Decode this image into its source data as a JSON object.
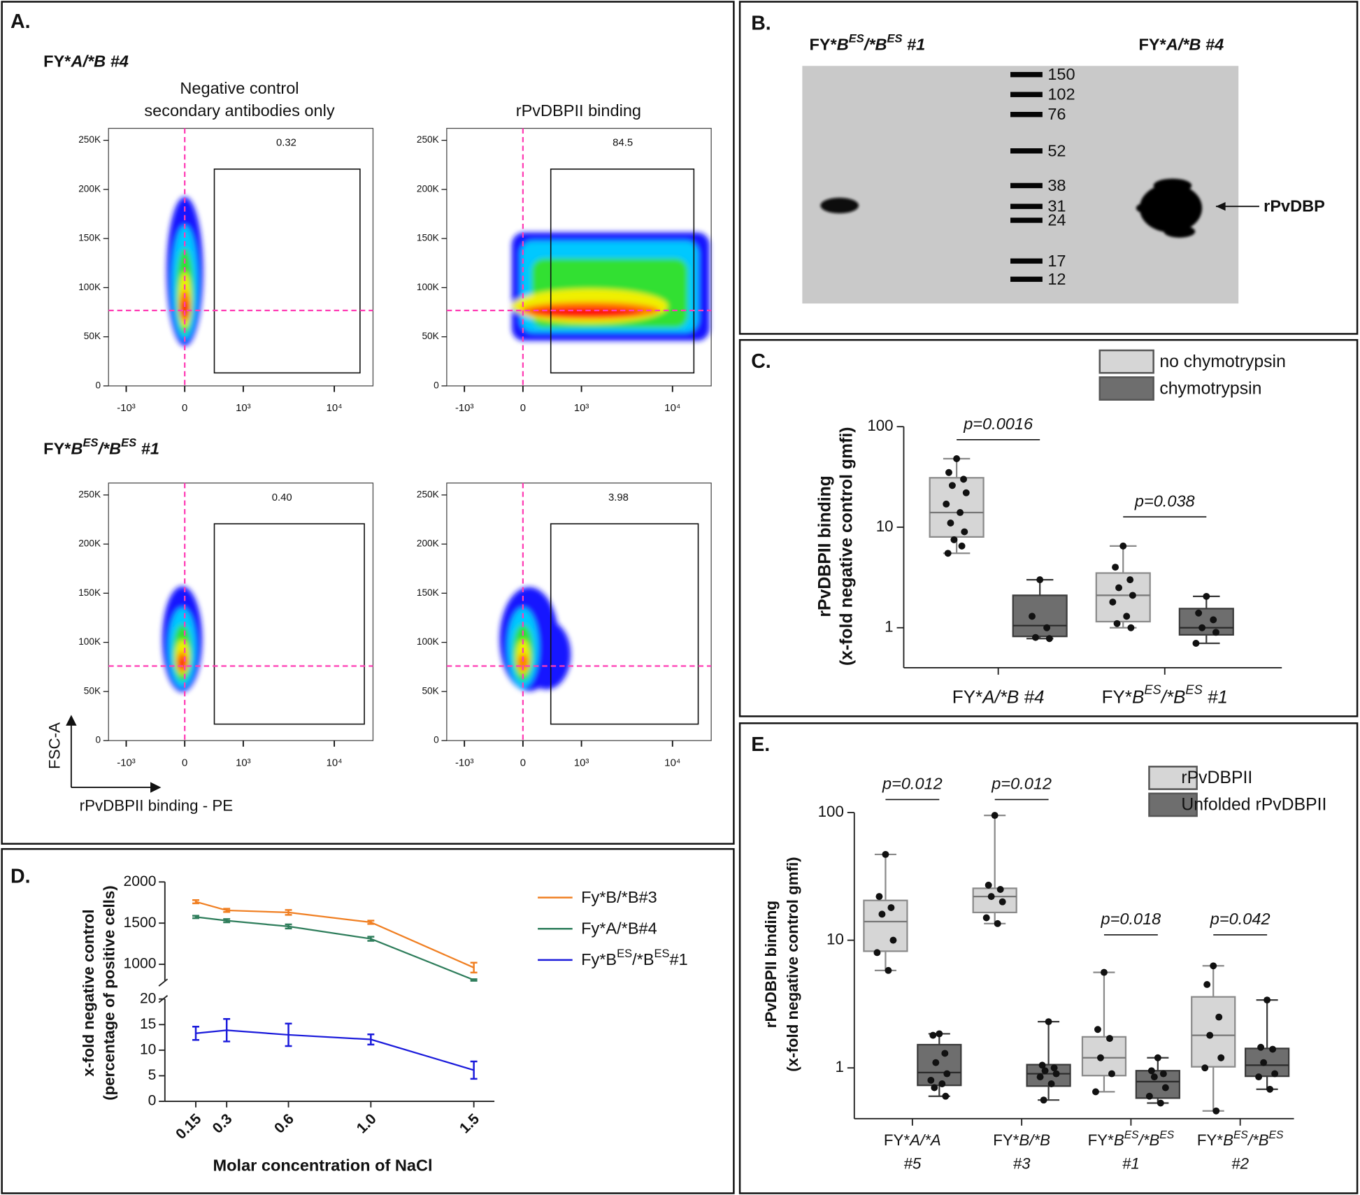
{
  "flow": {
    "label": "A.",
    "column_titles": [
      [
        "Negative control",
        "secondary antibodies only"
      ],
      [
        "rPvDBPII binding"
      ]
    ],
    "rows": [
      {
        "sample": "FY*A/*B #4",
        "gates": [
          "0.32",
          "84.5"
        ]
      },
      {
        "sample": "FY*BES/*BES #1",
        "gates": [
          "0.40",
          "3.98"
        ]
      }
    ],
    "ylim": [
      0,
      262144
    ],
    "yticks": [
      {
        "value": 0,
        "label": "0"
      },
      {
        "value": 50000,
        "label": "50K"
      },
      {
        "value": 100000,
        "label": "100K"
      },
      {
        "value": 150000,
        "label": "150K"
      },
      {
        "value": 200000,
        "label": "200K"
      },
      {
        "value": 250000,
        "label": "250K"
      }
    ],
    "xscale": "biexponential",
    "xlim": [
      -1600,
      26000
    ],
    "xticks": [
      {
        "value": -1000,
        "label": "-10³"
      },
      {
        "value": 0,
        "label": "0"
      },
      {
        "value": 1000,
        "label": "10³"
      },
      {
        "value": 10000,
        "label": "10⁴"
      }
    ],
    "y_axis_label": "FSC-A",
    "x_axis_label": "rPvDBPII binding - PE"
  },
  "blot": {
    "label": "B.",
    "lanes": [
      "FY*BES/*BES #1",
      "FY*A/*B #4"
    ],
    "ladder": [
      "150",
      "102",
      "76",
      "52",
      "38",
      "31",
      "24",
      "17",
      "12"
    ],
    "band_label": "rPvDBP"
  },
  "chart_data": [
    {
      "type": "box",
      "label": "C.",
      "ylabel": [
        "rPvDBPII binding",
        "(x-fold negative control gmfi)"
      ],
      "categories": [
        "FY*A/*B #4",
        "FY*BES/*BES #1"
      ],
      "annotations": [
        "p=0.0016",
        "p=0.038"
      ],
      "yscale": "log",
      "ylim": [
        0.4,
        100
      ],
      "yticks": [
        1,
        10,
        100
      ],
      "series": [
        {
          "name": "no chymotrypsin",
          "color": "#d6d6d6",
          "boxes": [
            {
              "whisker_low": 5.5,
              "q1": 8,
              "median": 14,
              "q3": 31,
              "whisker_high": 48,
              "points": [
                48,
                35,
                30,
                26,
                22,
                17,
                14,
                11,
                9,
                7.5,
                6.5,
                5.5
              ]
            },
            {
              "whisker_low": 1.0,
              "q1": 1.15,
              "median": 2.1,
              "q3": 3.5,
              "whisker_high": 6.5,
              "points": [
                6.5,
                4,
                3,
                2.5,
                2.1,
                1.8,
                1.3,
                1.1,
                1.0
              ]
            }
          ]
        },
        {
          "name": "chymotrypsin",
          "color": "#6e6e6e",
          "boxes": [
            {
              "whisker_low": 0.78,
              "q1": 0.82,
              "median": 1.05,
              "q3": 2.1,
              "whisker_high": 3.0,
              "points": [
                3.0,
                1.3,
                1.0,
                0.8,
                0.78
              ]
            },
            {
              "whisker_low": 0.7,
              "q1": 0.85,
              "median": 1.0,
              "q3": 1.55,
              "whisker_high": 2.05,
              "points": [
                2.05,
                1.4,
                1.2,
                1.0,
                0.9,
                0.7
              ]
            }
          ]
        }
      ]
    },
    {
      "type": "line",
      "label": "D.",
      "xlabel": "Molar concentration of NaCl",
      "ylabel": [
        "x-fold negative control",
        "(percentage of positive cells)"
      ],
      "x": [
        0.15,
        0.3,
        0.6,
        1,
        1.5
      ],
      "xlim": [
        0,
        1.6
      ],
      "xticks": [
        0.15,
        0.3,
        0.6,
        {
          "value": 1,
          "label": "1.0"
        },
        1.5
      ],
      "ylim_upper": [
        800,
        2000
      ],
      "yticks_upper": [
        1000,
        1500,
        2000
      ],
      "ylim_lower": [
        0,
        20
      ],
      "yticks_lower": [
        0,
        5,
        10,
        15,
        20
      ],
      "series": [
        {
          "name": "Fy*B/*B#3",
          "color": "#f07f22",
          "values": [
            1760,
            1655,
            1630,
            1510,
            960
          ],
          "errors": [
            20,
            20,
            30,
            20,
            60
          ]
        },
        {
          "name": "Fy*A/*B#4",
          "color": "#2e7d5b",
          "values": [
            1575,
            1530,
            1460,
            1310,
            810
          ],
          "errors": [
            15,
            20,
            25,
            25,
            10
          ]
        },
        {
          "name": "Fy*BES/*BES#1",
          "color": "#1a1adb",
          "values": [
            13.3,
            13.9,
            13,
            12.1,
            6.1
          ],
          "errors": [
            1.3,
            2.2,
            2.2,
            1.0,
            1.7
          ]
        }
      ]
    },
    {
      "type": "box",
      "label": "E.",
      "ylabel": [
        "rPvDBPII binding",
        "(x-fold negative control gmfi)"
      ],
      "categories": [
        [
          "FY*A/*A",
          "#5"
        ],
        [
          "FY*B/*B",
          "#3"
        ],
        [
          "FY*BES/*BES",
          "#1"
        ],
        [
          "FY*BES/*BES",
          "#2"
        ]
      ],
      "annotations": [
        "p=0.012",
        "p=0.012",
        "p=0.018",
        "p=0.042"
      ],
      "yscale": "log",
      "ylim": [
        0.4,
        100
      ],
      "yticks": [
        1,
        10,
        100
      ],
      "series": [
        {
          "name": "rPvDBPII",
          "color": "#d6d6d6",
          "boxes": [
            {
              "whisker_low": 5.8,
              "q1": 8.2,
              "median": 14,
              "q3": 20.5,
              "whisker_high": 47,
              "points": [
                47,
                22,
                18,
                16,
                10,
                8,
                5.8
              ]
            },
            {
              "whisker_low": 13.5,
              "q1": 16.5,
              "median": 22,
              "q3": 25.5,
              "whisker_high": 95,
              "points": [
                95,
                27,
                25,
                22,
                20,
                15,
                13.5
              ]
            },
            {
              "whisker_low": 0.65,
              "q1": 0.87,
              "median": 1.2,
              "q3": 1.75,
              "whisker_high": 5.6,
              "points": [
                5.6,
                2.0,
                1.7,
                1.2,
                0.9,
                0.65
              ]
            },
            {
              "whisker_low": 0.46,
              "q1": 1.02,
              "median": 1.8,
              "q3": 3.6,
              "whisker_high": 6.3,
              "points": [
                6.3,
                4.5,
                2.5,
                1.8,
                1.2,
                1.0,
                0.46
              ]
            }
          ]
        },
        {
          "name": "Unfolded rPvDBPII",
          "color": "#6e6e6e",
          "boxes": [
            {
              "whisker_low": 0.6,
              "q1": 0.73,
              "median": 0.92,
              "q3": 1.52,
              "whisker_high": 1.85,
              "points": [
                1.85,
                1.8,
                1.3,
                1.1,
                0.9,
                0.8,
                0.75,
                0.7,
                0.6
              ]
            },
            {
              "whisker_low": 0.56,
              "q1": 0.72,
              "median": 0.9,
              "q3": 1.06,
              "whisker_high": 2.3,
              "points": [
                2.3,
                1.05,
                1.0,
                0.95,
                0.9,
                0.85,
                0.75,
                0.56
              ]
            },
            {
              "whisker_low": 0.53,
              "q1": 0.58,
              "median": 0.78,
              "q3": 0.95,
              "whisker_high": 1.2,
              "points": [
                1.2,
                0.95,
                0.9,
                0.85,
                0.7,
                0.6,
                0.53
              ]
            },
            {
              "whisker_low": 0.68,
              "q1": 0.86,
              "median": 1.05,
              "q3": 1.42,
              "whisker_high": 3.4,
              "points": [
                3.4,
                1.45,
                1.4,
                1.1,
                0.9,
                0.85,
                0.68
              ]
            }
          ]
        }
      ]
    }
  ]
}
